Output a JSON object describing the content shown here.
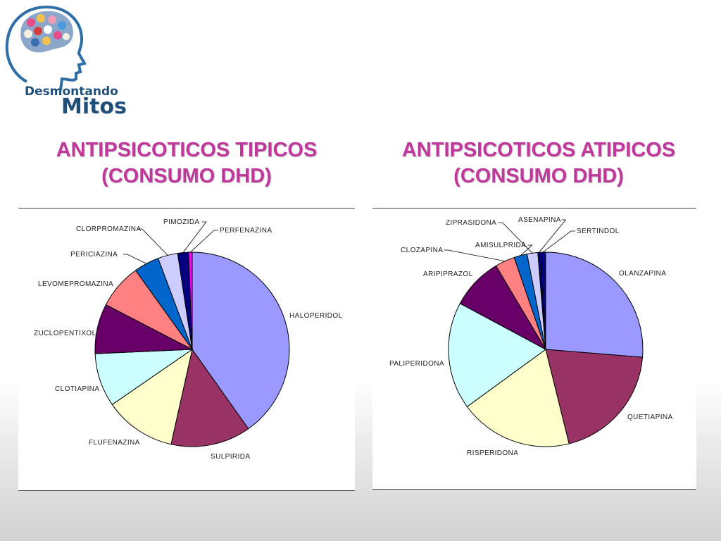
{
  "logo": {
    "line1": "Desmontando",
    "line2": "Mitos"
  },
  "chart_data": [
    {
      "type": "pie",
      "title": [
        "ANTIPSICOTICOS TIPICOS",
        "(CONSUMO DHD)"
      ],
      "labels": [
        "HALOPERIDOL",
        "SULPIRIDA",
        "FLUFENAZINA",
        "CLOTIAPINA",
        "ZUCLOPENTIXOL",
        "LEVOMEPROMAZINA",
        "PERICIAZINA",
        "CLORPROMAZINA",
        "PIMOZIDA",
        "PERFENAZINA"
      ],
      "values": [
        40.2,
        13.3,
        11.9,
        8.9,
        8.3,
        7.5,
        4.2,
        3.3,
        1.8,
        0.6
      ],
      "colors": [
        "#9999ff",
        "#993366",
        "#ffffcc",
        "#ccffff",
        "#660066",
        "#ff8080",
        "#0066cc",
        "#ccccff",
        "#000080",
        "#ff00ff"
      ]
    },
    {
      "type": "pie",
      "title": [
        "ANTIPSICOTICOS ATIPICOS",
        "(CONSUMO DHD)"
      ],
      "labels": [
        "OLANZAPINA",
        "QUETIAPINA",
        "RISPERIDONA",
        "PALIPERIDONA",
        "ARIPIPRAZOL",
        "CLOZAPINA",
        "AMISULPRIDA",
        "ZIPRASIDONA",
        "ASENAPINA",
        "SERTINDOL"
      ],
      "values": [
        26.5,
        20.0,
        19.0,
        18.0,
        8.7,
        3.3,
        2.2,
        1.8,
        0.4,
        0.9
      ],
      "colors": [
        "#9999ff",
        "#993366",
        "#ffffcc",
        "#ccffff",
        "#660066",
        "#ff8080",
        "#0066cc",
        "#ccccff",
        "#000080",
        "#000080"
      ]
    }
  ]
}
